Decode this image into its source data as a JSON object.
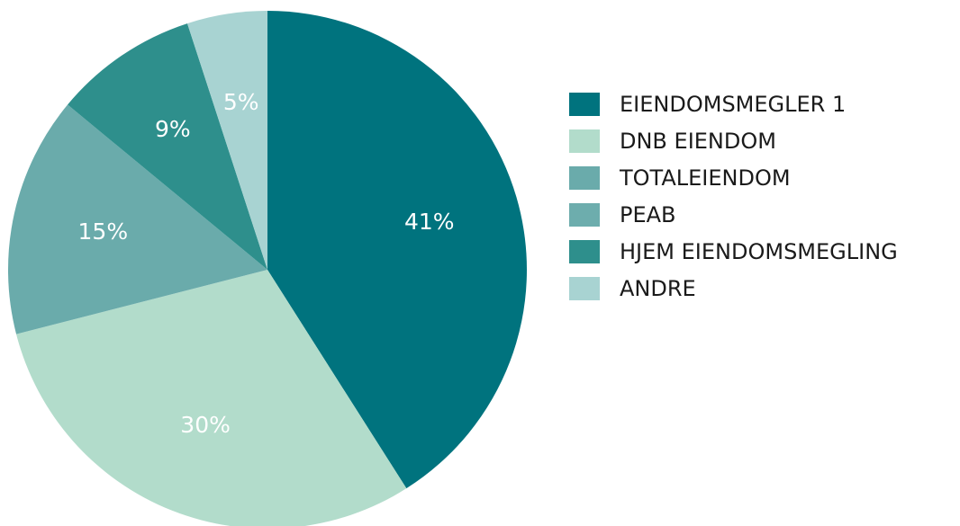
{
  "chart_data": {
    "type": "pie",
    "categories": [
      "EIENDOMSMEGLER 1",
      "DNB EIENDOM",
      "TOTALEIENDOM",
      "PEAB",
      "HJEM EIENDOMSMEGLING",
      "ANDRE"
    ],
    "values": [
      41,
      30,
      15,
      0,
      9,
      5
    ],
    "value_labels": [
      "41%",
      "30%",
      "15%",
      null,
      "9%",
      "5%"
    ],
    "colors": [
      "#00737e",
      "#b2dccb",
      "#6aabab",
      "#6dadad",
      "#2e8f8c",
      "#a8d3d2"
    ],
    "legend": "right"
  }
}
